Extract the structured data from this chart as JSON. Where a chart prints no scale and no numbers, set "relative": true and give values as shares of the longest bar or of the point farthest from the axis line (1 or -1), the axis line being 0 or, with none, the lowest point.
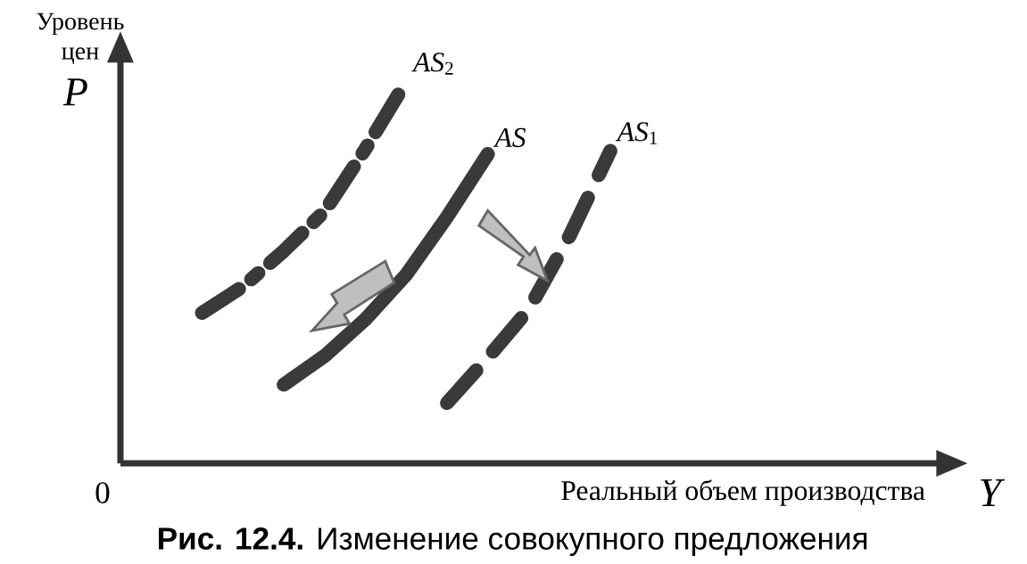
{
  "chart_data": {
    "type": "line",
    "relative": true,
    "title": "**Рис. 12.4.** Изменение совокупного предложения",
    "xlabel": "Реальный объем производства",
    "ylabel": "Уровень цен",
    "annotations": [
      "P",
      "Y",
      "0"
    ],
    "categories": [
      null,
      null,
      null,
      null,
      null,
      null,
      null,
      null,
      null,
      null,
      null,
      null,
      null,
      null,
      null,
      null,
      null,
      null,
      null,
      null,
      null
    ],
    "series": [
      {
        "name": "*AS*$_{2}$",
        "color": "#3a3a3a",
        "line_style": "dashdot",
        "values": [
          null,
          null,
          0.394,
          0.463,
          0.556,
          0.66,
          0.823,
          1,
          null,
          null,
          null,
          null,
          null,
          null,
          null,
          null,
          null,
          null,
          null,
          null,
          null
        ]
      },
      {
        "name": "*AS*",
        "color": "#3a3a3a",
        "line_style": "solid",
        "values": [
          null,
          null,
          null,
          null,
          0.206,
          0.281,
          0.377,
          0.494,
          0.645,
          0.81,
          null,
          null,
          null,
          null,
          null,
          null,
          null,
          null,
          null,
          null,
          null
        ]
      },
      {
        "name": "*AS*$_{1}$",
        "color": "#3a3a3a",
        "line_style": "dashed",
        "values": [
          null,
          null,
          null,
          null,
          null,
          null,
          null,
          null,
          0.158,
          0.277,
          0.403,
          0.595,
          0.818,
          null,
          null,
          null,
          null,
          null,
          null,
          null,
          null
        ]
      }
    ]
  }
}
